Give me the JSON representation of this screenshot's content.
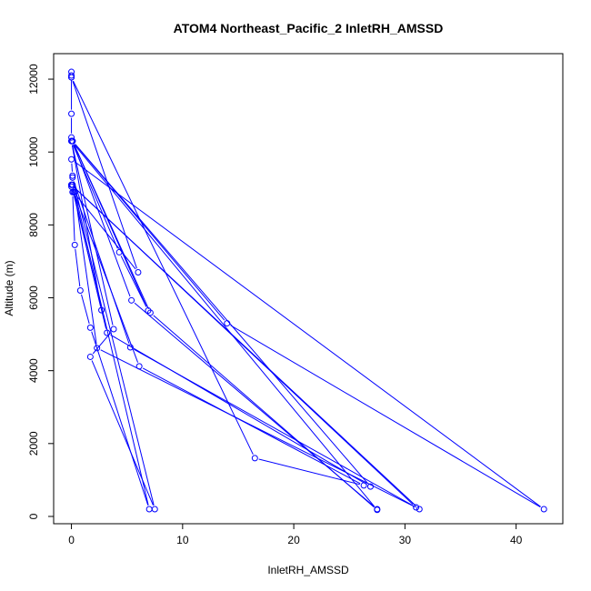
{
  "chart_data": {
    "type": "line",
    "title": "ATOM4 Northeast_Pacific_2 InletRH_AMSSD",
    "xlabel": "InletRH_AMSSD",
    "ylabel": "Altitude (m)",
    "xlim": [
      -1.6,
      44.2
    ],
    "ylim": [
      -200,
      12700
    ],
    "xticks": [
      0,
      10,
      20,
      30,
      40
    ],
    "yticks": [
      0,
      2000,
      4000,
      6000,
      8000,
      10000,
      12000
    ],
    "grid": false,
    "legend": "none",
    "series": [
      {
        "color": "#0000ff",
        "marker": "open-circle",
        "points": [
          [
            0.0,
            12200
          ],
          [
            0.0,
            12050
          ],
          [
            0.0,
            12100
          ],
          [
            0.0,
            11050
          ],
          [
            0.0,
            10400
          ],
          [
            0.1,
            10300
          ],
          [
            14.0,
            5300
          ],
          [
            42.5,
            200
          ],
          [
            0.0,
            9800
          ],
          [
            0.1,
            9350
          ],
          [
            0.1,
            9100
          ],
          [
            0.0,
            9050
          ],
          [
            0.1,
            8900
          ],
          [
            0.3,
            7450
          ],
          [
            0.8,
            6200
          ],
          [
            1.7,
            5180
          ],
          [
            7.0,
            200
          ],
          [
            0.3,
            8900
          ],
          [
            2.3,
            4620
          ],
          [
            31.3,
            200
          ],
          [
            0.0,
            9100
          ],
          [
            3.2,
            5040
          ],
          [
            26.9,
            820
          ],
          [
            0.1,
            10300
          ],
          [
            7.1,
            5590
          ],
          [
            27.5,
            180
          ],
          [
            0.0,
            10300
          ],
          [
            3.8,
            5140
          ],
          [
            1.7,
            4380
          ],
          [
            7.5,
            200
          ],
          [
            0.1,
            9300
          ],
          [
            5.3,
            4640
          ],
          [
            31.0,
            250
          ],
          [
            0.0,
            9100
          ],
          [
            6.1,
            4120
          ],
          [
            26.3,
            850
          ],
          [
            16.5,
            1600
          ],
          [
            0.0,
            12050
          ],
          [
            6.0,
            6700
          ],
          [
            0.2,
            8900
          ],
          [
            2.7,
            5660
          ],
          [
            0.0,
            10300
          ],
          [
            4.3,
            7250
          ],
          [
            6.9,
            5650
          ],
          [
            0.1,
            10300
          ],
          [
            5.4,
            5930
          ],
          [
            27.5,
            200
          ]
        ]
      }
    ]
  }
}
